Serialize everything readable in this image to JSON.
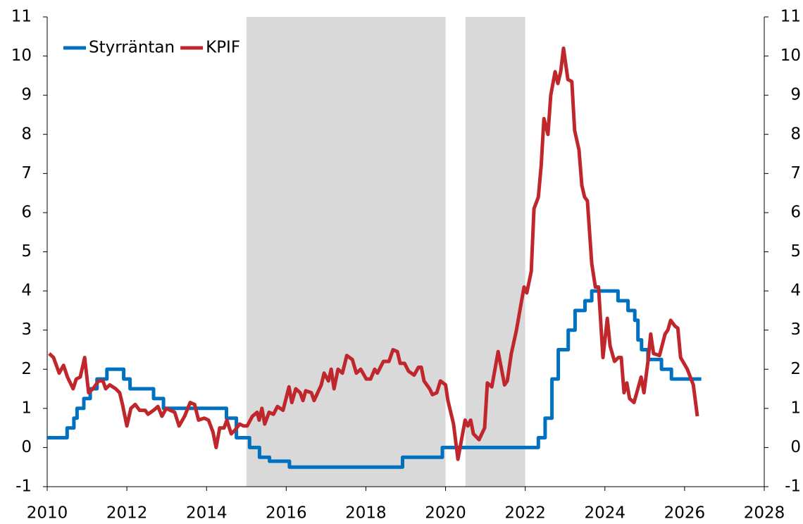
{
  "chart_data": {
    "type": "line",
    "xlim": [
      2010,
      2028
    ],
    "xticks": [
      2010,
      2012,
      2014,
      2016,
      2018,
      2020,
      2022,
      2024,
      2026,
      2028
    ],
    "ylim": [
      -1,
      11
    ],
    "yticks": [
      -1,
      0,
      1,
      2,
      3,
      4,
      5,
      6,
      7,
      8,
      9,
      10,
      11
    ],
    "y2lim": [
      -1,
      11
    ],
    "y2ticks": [
      -1,
      0,
      1,
      2,
      3,
      4,
      5,
      6,
      7,
      8,
      9,
      10,
      11
    ],
    "shaded": [
      [
        2015,
        2020
      ],
      [
        2020.5,
        2022
      ]
    ],
    "shade_color": "#d9d9d9",
    "legend": "upper left",
    "series": [
      {
        "name": "Styrräntan",
        "color": "#0070c0",
        "x": [
          2010.0,
          2010.5,
          2010.5,
          2010.67,
          2010.67,
          2010.75,
          2010.75,
          2010.92,
          2010.92,
          2011.08,
          2011.08,
          2011.25,
          2011.25,
          2011.5,
          2011.5,
          2011.92,
          2011.92,
          2012.08,
          2012.08,
          2012.67,
          2012.67,
          2012.92,
          2012.92,
          2014.5,
          2014.5,
          2014.75,
          2014.75,
          2015.08,
          2015.08,
          2015.33,
          2015.33,
          2015.58,
          2015.58,
          2016.08,
          2016.08,
          2018.92,
          2018.92,
          2019.92,
          2019.92,
          2022.33,
          2022.33,
          2022.5,
          2022.5,
          2022.67,
          2022.67,
          2022.83,
          2022.83,
          2023.08,
          2023.08,
          2023.25,
          2023.25,
          2023.5,
          2023.5,
          2023.67,
          2023.67,
          2024.33,
          2024.33,
          2024.58,
          2024.58,
          2024.75,
          2024.75,
          2024.83,
          2024.83,
          2024.92,
          2024.92,
          2025.08,
          2025.08,
          2025.42,
          2025.42,
          2025.67,
          2025.67,
          2026.42
        ],
        "values": [
          0.25,
          0.25,
          0.5,
          0.5,
          0.75,
          0.75,
          1.0,
          1.0,
          1.25,
          1.25,
          1.5,
          1.5,
          1.75,
          1.75,
          2.0,
          2.0,
          1.75,
          1.75,
          1.5,
          1.5,
          1.25,
          1.25,
          1.0,
          1.0,
          0.75,
          0.75,
          0.25,
          0.25,
          0,
          0,
          -0.25,
          -0.25,
          -0.35,
          -0.35,
          -0.5,
          -0.5,
          -0.25,
          -0.25,
          0,
          0,
          0.25,
          0.25,
          0.75,
          0.75,
          1.75,
          1.75,
          2.5,
          2.5,
          3.0,
          3.0,
          3.5,
          3.5,
          3.75,
          3.75,
          4.0,
          4.0,
          3.75,
          3.75,
          3.5,
          3.5,
          3.25,
          3.25,
          2.75,
          2.75,
          2.5,
          2.5,
          2.25,
          2.25,
          2.0,
          2.0,
          1.75,
          1.75
        ]
      },
      {
        "name": "KPIF",
        "color": "#c0272d",
        "x": [
          2010.05,
          2010.16,
          2010.3,
          2010.41,
          2010.51,
          2010.65,
          2010.73,
          2010.83,
          2010.94,
          2011.04,
          2011.15,
          2011.29,
          2011.4,
          2011.47,
          2011.57,
          2011.72,
          2011.82,
          2011.89,
          2012.0,
          2012.1,
          2012.21,
          2012.32,
          2012.46,
          2012.53,
          2012.67,
          2012.78,
          2012.88,
          2012.99,
          2013.09,
          2013.2,
          2013.31,
          2013.45,
          2013.59,
          2013.7,
          2013.8,
          2013.94,
          2014.05,
          2014.16,
          2014.24,
          2014.33,
          2014.44,
          2014.51,
          2014.62,
          2014.72,
          2014.83,
          2014.93,
          2015.02,
          2015.15,
          2015.27,
          2015.32,
          2015.39,
          2015.46,
          2015.57,
          2015.68,
          2015.78,
          2015.92,
          2016.07,
          2016.14,
          2016.24,
          2016.35,
          2016.42,
          2016.49,
          2016.63,
          2016.7,
          2016.88,
          2016.95,
          2017.06,
          2017.13,
          2017.2,
          2017.3,
          2017.41,
          2017.52,
          2017.66,
          2017.76,
          2017.87,
          2018.01,
          2018.12,
          2018.22,
          2018.29,
          2018.44,
          2018.58,
          2018.68,
          2018.79,
          2018.86,
          2018.97,
          2019.07,
          2019.21,
          2019.32,
          2019.39,
          2019.46,
          2019.6,
          2019.67,
          2019.78,
          2019.87,
          2020.0,
          2020.06,
          2020.2,
          2020.31,
          2020.4,
          2020.49,
          2020.56,
          2020.63,
          2020.7,
          2020.84,
          2020.98,
          2021.05,
          2021.16,
          2021.32,
          2021.48,
          2021.55,
          2021.65,
          2021.78,
          2021.9,
          2021.97,
          2022.04,
          2022.15,
          2022.22,
          2022.33,
          2022.4,
          2022.47,
          2022.57,
          2022.64,
          2022.75,
          2022.82,
          2022.89,
          2022.96,
          2023.07,
          2023.17,
          2023.24,
          2023.35,
          2023.42,
          2023.49,
          2023.56,
          2023.67,
          2023.76,
          2023.84,
          2023.95,
          2024.06,
          2024.13,
          2024.24,
          2024.34,
          2024.41,
          2024.48,
          2024.55,
          2024.62,
          2024.73,
          2024.91,
          2024.98,
          2025.08,
          2025.15,
          2025.22,
          2025.37,
          2025.51,
          2025.58,
          2025.65,
          2025.76,
          2025.83,
          2025.9,
          2026.07,
          2026.22,
          2026.32
        ],
        "values": [
          2.4,
          2.3,
          1.9,
          2.1,
          1.8,
          1.5,
          1.75,
          1.8,
          2.3,
          1.4,
          1.5,
          1.7,
          1.7,
          1.5,
          1.6,
          1.5,
          1.4,
          1.1,
          0.55,
          1.0,
          1.1,
          0.95,
          0.95,
          0.85,
          0.95,
          1.05,
          0.8,
          1.0,
          0.95,
          0.9,
          0.55,
          0.8,
          1.15,
          1.1,
          0.7,
          0.75,
          0.7,
          0.4,
          0.0,
          0.5,
          0.5,
          0.7,
          0.35,
          0.45,
          0.6,
          0.55,
          0.55,
          0.8,
          0.9,
          0.7,
          1.0,
          0.6,
          0.9,
          0.85,
          1.05,
          0.95,
          1.55,
          1.15,
          1.5,
          1.4,
          1.2,
          1.45,
          1.4,
          1.2,
          1.6,
          1.9,
          1.7,
          2.0,
          1.5,
          2.0,
          1.9,
          2.35,
          2.25,
          1.9,
          2.0,
          1.75,
          1.75,
          2.0,
          1.9,
          2.2,
          2.2,
          2.5,
          2.45,
          2.15,
          2.15,
          1.95,
          1.85,
          2.05,
          2.05,
          1.7,
          1.5,
          1.35,
          1.4,
          1.7,
          1.6,
          1.2,
          0.6,
          -0.3,
          0.2,
          0.7,
          0.55,
          0.7,
          0.35,
          0.2,
          0.5,
          1.65,
          1.55,
          2.45,
          1.6,
          1.7,
          2.4,
          3.0,
          3.7,
          4.1,
          3.95,
          4.5,
          6.1,
          6.4,
          7.2,
          8.4,
          8.0,
          9.0,
          9.6,
          9.3,
          9.6,
          10.2,
          9.4,
          9.35,
          8.1,
          7.6,
          6.7,
          6.4,
          6.3,
          4.7,
          4.1,
          4.1,
          2.3,
          3.3,
          2.6,
          2.2,
          2.3,
          2.3,
          1.4,
          1.65,
          1.25,
          1.15,
          1.8,
          1.4,
          2.2,
          2.9,
          2.4,
          2.35,
          2.9,
          3.0,
          3.25,
          3.1,
          3.05,
          2.3,
          2.0,
          1.6,
          0.8
        ]
      }
    ]
  }
}
